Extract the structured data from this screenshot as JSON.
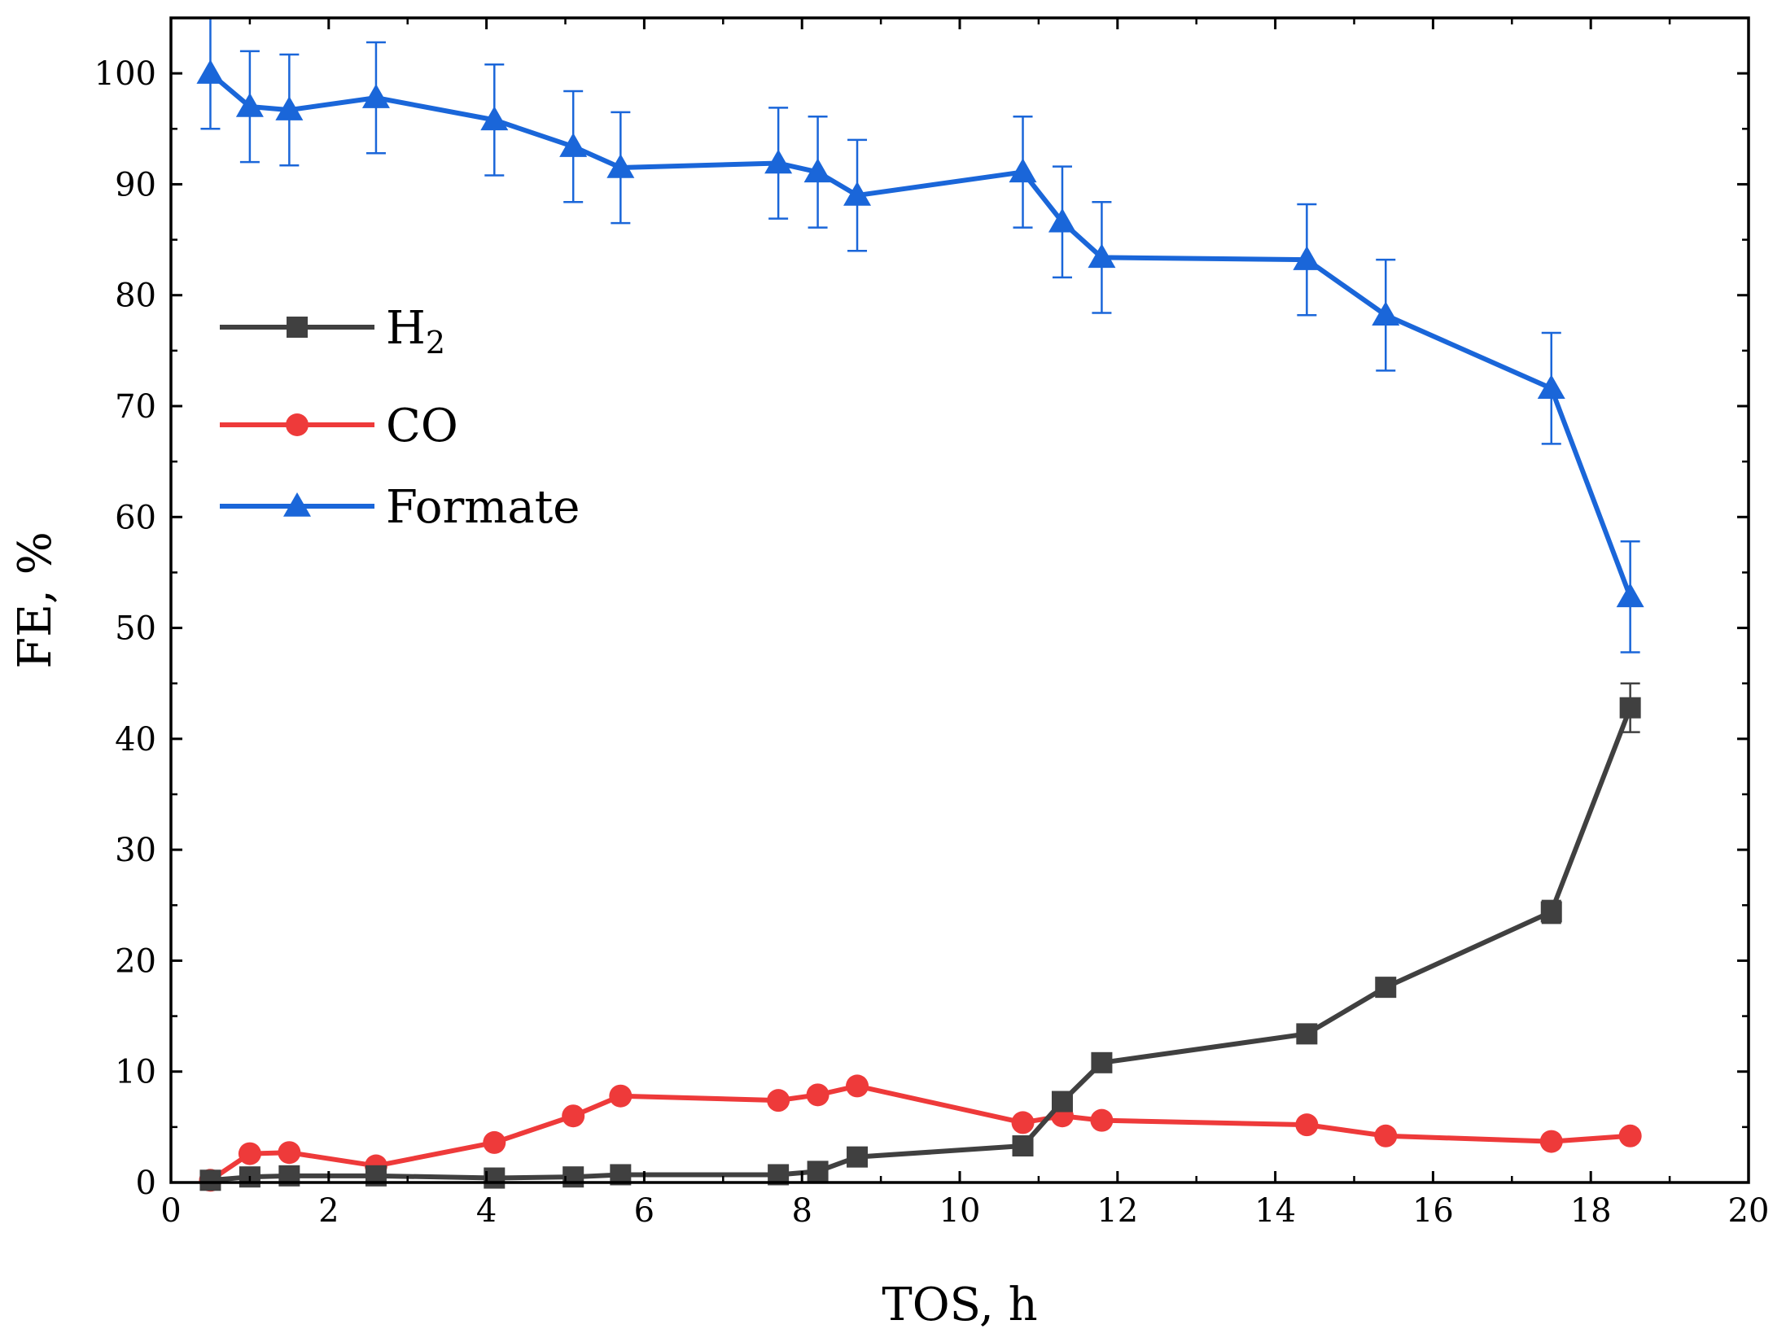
{
  "chart_data": {
    "type": "line",
    "title": "",
    "xlabel": "TOS, h",
    "ylabel": "FE, %",
    "xlim": [
      0,
      20
    ],
    "ylim": [
      0,
      105
    ],
    "xticks": [
      0,
      2,
      4,
      6,
      8,
      10,
      12,
      14,
      16,
      18,
      20
    ],
    "yticks": [
      0,
      10,
      20,
      30,
      40,
      50,
      60,
      70,
      80,
      90,
      100
    ],
    "grid": false,
    "legend_position": "center-left",
    "series": [
      {
        "name": "H",
        "name_subscript": "2",
        "color": "#404040",
        "marker": "square",
        "x": [
          0.5,
          1.0,
          1.5,
          2.6,
          4.1,
          5.1,
          5.7,
          7.7,
          8.2,
          8.7,
          10.8,
          11.3,
          11.8,
          14.4,
          15.4,
          17.5,
          18.5
        ],
        "y": [
          0.2,
          0.5,
          0.6,
          0.6,
          0.4,
          0.5,
          0.7,
          0.7,
          1.0,
          2.3,
          3.3,
          7.3,
          10.8,
          13.4,
          17.6,
          24.4,
          42.8
        ],
        "err": [
          0,
          0,
          0,
          0,
          0,
          0,
          0,
          0,
          0,
          0,
          0,
          0,
          0,
          0,
          0,
          1.0,
          2.2
        ]
      },
      {
        "name": "CO",
        "color": "#ee3a3a",
        "marker": "circle",
        "x": [
          0.5,
          1.0,
          1.5,
          2.6,
          4.1,
          5.1,
          5.7,
          7.7,
          8.2,
          8.7,
          10.8,
          11.3,
          11.8,
          14.4,
          15.4,
          17.5,
          18.5
        ],
        "y": [
          0.2,
          2.6,
          2.7,
          1.5,
          3.6,
          6.0,
          7.8,
          7.4,
          7.9,
          8.7,
          5.4,
          6.0,
          5.6,
          5.2,
          4.2,
          3.7,
          4.2
        ],
        "err": [
          0,
          0,
          0,
          0,
          0,
          0,
          0,
          0,
          0,
          0,
          0,
          0,
          0,
          0,
          0,
          0,
          0
        ]
      },
      {
        "name": "Formate",
        "color": "#1a66d9",
        "marker": "triangle",
        "x": [
          0.5,
          1.0,
          1.5,
          2.6,
          4.1,
          5.1,
          5.7,
          7.7,
          8.2,
          8.7,
          10.8,
          11.3,
          11.8,
          14.4,
          15.4,
          17.5,
          18.5
        ],
        "y": [
          100.0,
          97.0,
          96.7,
          97.8,
          95.8,
          93.4,
          91.5,
          91.9,
          91.1,
          89.0,
          91.1,
          86.6,
          83.4,
          83.2,
          78.2,
          71.6,
          52.8
        ],
        "err": [
          5,
          5,
          5,
          5,
          5,
          5,
          5,
          5,
          5,
          5,
          5,
          5,
          5,
          5,
          5,
          5,
          5
        ]
      }
    ]
  }
}
